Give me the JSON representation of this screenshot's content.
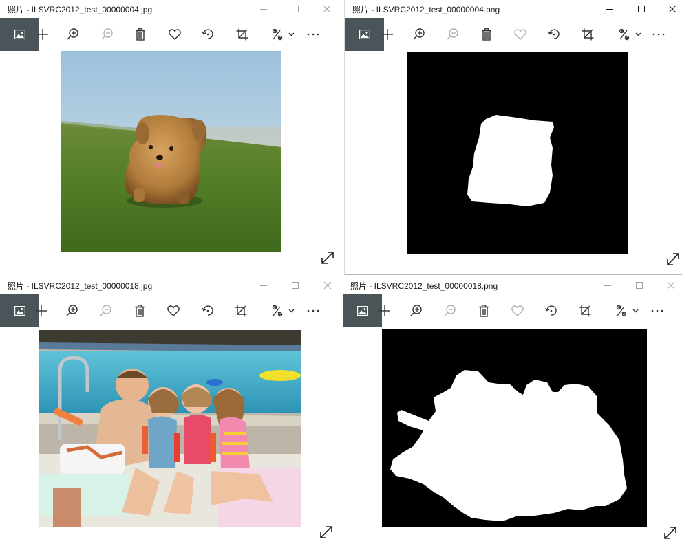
{
  "windows": [
    {
      "id": "w1",
      "title": "照片 - ILSVRC2012_test_00000004.jpg",
      "state": "inactive",
      "image": "dog on grass"
    },
    {
      "id": "w2",
      "title": "照片 - ILSVRC2012_test_00000004.png",
      "state": "active",
      "image": "dog mask"
    },
    {
      "id": "w3",
      "title": "照片 - ILSVRC2012_test_00000018.jpg",
      "state": "inactive",
      "image": "kids by pool"
    },
    {
      "id": "w4",
      "title": "照片 - ILSVRC2012_test_00000018.png",
      "state": "inactive",
      "image": "kids mask"
    }
  ],
  "toolbar": {
    "icons": [
      "photo-collection-icon",
      "add-icon",
      "zoom-in-icon",
      "zoom-out-icon",
      "delete-icon",
      "favorite-icon",
      "rotate-icon",
      "crop-icon",
      "edit-enhance-icon",
      "more-icon"
    ],
    "more_label": "···"
  },
  "colors": {
    "toolbar_home_bg": "#4a5459",
    "mask_black": "#000000",
    "mask_white": "#ffffff"
  }
}
